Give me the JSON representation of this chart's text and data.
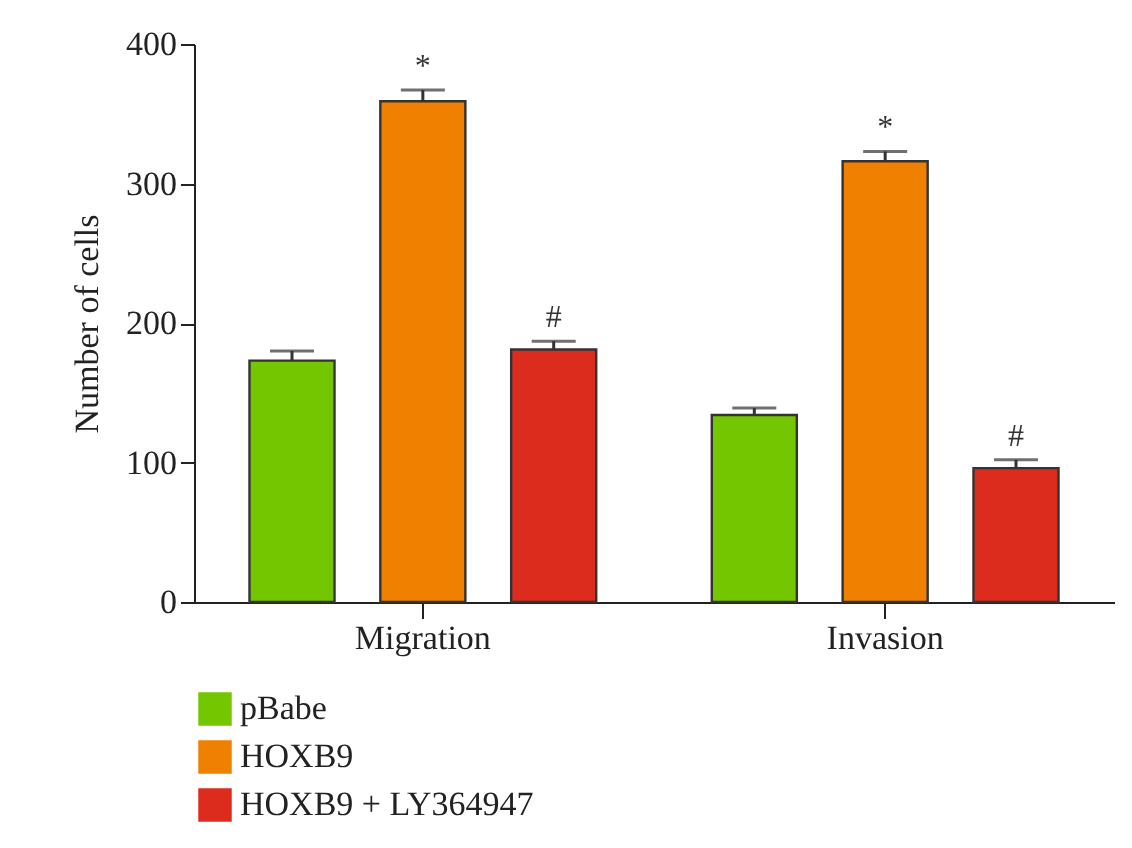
{
  "chart_data": {
    "type": "bar",
    "ylabel": "Number of cells",
    "categories": [
      "Migration",
      "Invasion"
    ],
    "series": [
      {
        "name": "pBabe",
        "color": "#74c600",
        "values": [
          173,
          134
        ],
        "errors": [
          7,
          5
        ]
      },
      {
        "name": "HOXB9",
        "color": "#f08000",
        "values": [
          359,
          316
        ],
        "errors": [
          8,
          7
        ],
        "value_labels": [
          "*",
          "*"
        ]
      },
      {
        "name": "HOXB9 + LY364947",
        "color": "#dc2c1e",
        "values": [
          181,
          96
        ],
        "errors": [
          6,
          6
        ],
        "value_labels": [
          "#",
          "#"
        ]
      }
    ],
    "ylim": [
      0,
      400
    ],
    "yticks": [
      0,
      100,
      200,
      300,
      400
    ],
    "grid": false,
    "legend": "bottom left"
  }
}
